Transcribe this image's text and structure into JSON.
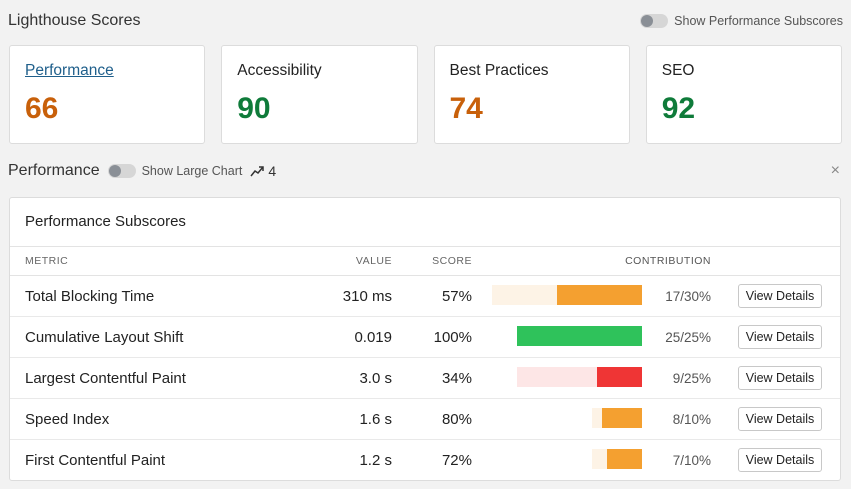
{
  "header": {
    "title": "Lighthouse Scores",
    "subscores_toggle_label": "Show Performance Subscores"
  },
  "cards": [
    {
      "label": "Performance",
      "score": "66",
      "color": "#c8600a"
    },
    {
      "label": "Accessibility",
      "score": "90",
      "color": "#0f7b3a"
    },
    {
      "label": "Best Practices",
      "score": "74",
      "color": "#c8600a"
    },
    {
      "label": "SEO",
      "score": "92",
      "color": "#0f7b3a"
    }
  ],
  "performance": {
    "title": "Performance",
    "large_chart_label": "Show Large Chart",
    "trend_count": "4",
    "close_symbol": "×"
  },
  "subscores": {
    "title": "Performance Subscores",
    "columns": {
      "metric": "METRIC",
      "value": "VALUE",
      "score": "SCORE",
      "contribution": "CONTRIBUTION"
    },
    "view_details_label": "View Details",
    "rows": [
      {
        "metric": "Total Blocking Time",
        "value": "310 ms",
        "score": "57%",
        "contribution": "17/30%",
        "earned": 17,
        "weight": 30,
        "fg": "#f4a030",
        "bg": "#fdf3e6"
      },
      {
        "metric": "Cumulative Layout Shift",
        "value": "0.019",
        "score": "100%",
        "contribution": "25/25%",
        "earned": 25,
        "weight": 25,
        "fg": "#2fc25b",
        "bg": "#e4f7ea"
      },
      {
        "metric": "Largest Contentful Paint",
        "value": "3.0 s",
        "score": "34%",
        "contribution": "9/25%",
        "earned": 9,
        "weight": 25,
        "fg": "#ef3535",
        "bg": "#fde6e6"
      },
      {
        "metric": "Speed Index",
        "value": "1.6 s",
        "score": "80%",
        "contribution": "8/10%",
        "earned": 8,
        "weight": 10,
        "fg": "#f4a030",
        "bg": "#fdf3e6"
      },
      {
        "metric": "First Contentful Paint",
        "value": "1.2 s",
        "score": "72%",
        "contribution": "7/10%",
        "earned": 7,
        "weight": 10,
        "fg": "#f4a030",
        "bg": "#fdf3e6"
      }
    ]
  }
}
